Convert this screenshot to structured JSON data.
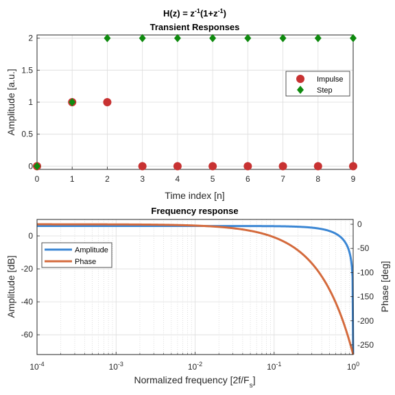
{
  "colors": {
    "impulse": "#c83232",
    "step": "#0f8a0f",
    "amplitude": "#3a86d4",
    "phase": "#d46a3c",
    "grid": "#dcdcdc",
    "axis": "#262626"
  },
  "chart_data": [
    {
      "type": "scatter",
      "title_parts": [
        "H(z) = z",
        "-1",
        "(1+z",
        "-1",
        ")"
      ],
      "subtitle": "Transient Responses",
      "xlabel": "Time index [n]",
      "ylabel": "Amplitude [a.u.]",
      "xlim": [
        0,
        9
      ],
      "ylim": [
        -0.05,
        2.05
      ],
      "xticks": [
        0,
        1,
        2,
        3,
        4,
        5,
        6,
        7,
        8,
        9
      ],
      "yticks": [
        0,
        0.5,
        1,
        1.5,
        2
      ],
      "ytick_labels": [
        "0",
        "0.5",
        "1",
        "1.5",
        "2"
      ],
      "grid": true,
      "legend": "right",
      "series": [
        {
          "name": "Impulse",
          "marker": "circle",
          "x": [
            0,
            1,
            2,
            3,
            4,
            5,
            6,
            7,
            8,
            9
          ],
          "y": [
            0,
            1,
            1,
            0,
            0,
            0,
            0,
            0,
            0,
            0
          ]
        },
        {
          "name": "Step",
          "marker": "diamond",
          "x": [
            0,
            1,
            2,
            3,
            4,
            5,
            6,
            7,
            8,
            9
          ],
          "y": [
            0,
            1,
            2,
            2,
            2,
            2,
            2,
            2,
            2,
            2
          ]
        }
      ]
    },
    {
      "type": "line",
      "title": "Frequency response",
      "xlabel_parts": [
        "Normalized frequency [2f/F",
        "s",
        "]"
      ],
      "ylabel": "Amplitude [dB]",
      "y2label": "Phase [deg]",
      "xscale": "log",
      "xlim": [
        0.0001,
        1
      ],
      "ylim": [
        -72,
        10
      ],
      "y2lim": [
        -270,
        10
      ],
      "xticks": [
        0.0001,
        0.001,
        0.01,
        0.1,
        1
      ],
      "xtick_base": [
        "10",
        "10",
        "10",
        "10",
        "10"
      ],
      "xtick_exp": [
        "-4",
        "-3",
        "-2",
        "-1",
        "0"
      ],
      "yticks": [
        0,
        -20,
        -40,
        -60
      ],
      "ytick_labels": [
        "0",
        "-20",
        "-40",
        "-60"
      ],
      "y2ticks": [
        0,
        -50,
        -100,
        -150,
        -200,
        -250
      ],
      "y2tick_labels": [
        "0",
        "-50",
        "-100",
        "-150",
        "-200",
        "-250"
      ],
      "grid": true,
      "legend": "left",
      "series": [
        {
          "name": "Amplitude",
          "axis": "left",
          "formula": "20*log10(2*cos(pi*f/2))"
        },
        {
          "name": "Phase",
          "axis": "right",
          "formula": "-270*f"
        }
      ]
    }
  ]
}
